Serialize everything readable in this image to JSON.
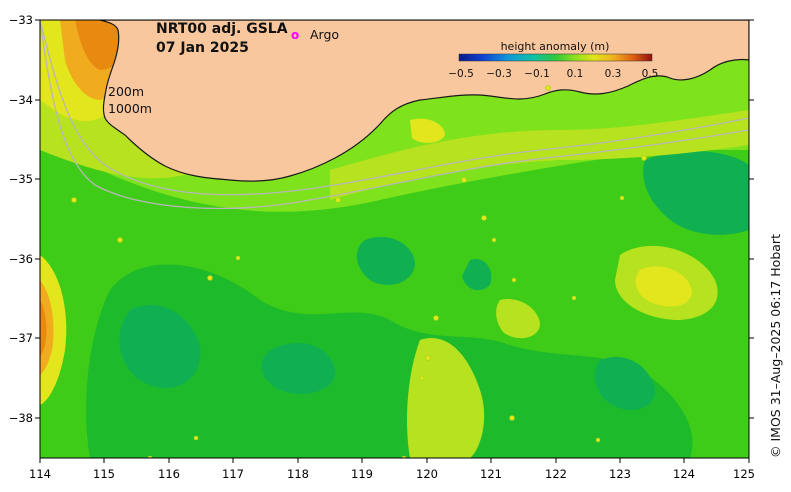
{
  "title": {
    "product": "NRT00 adj. GSLA",
    "date": "07 Jan 2025"
  },
  "legend": {
    "argo_marker": "o",
    "argo_label": "Argo"
  },
  "isobaths": [
    "200m",
    "1000m"
  ],
  "colorbar": {
    "title": "height anomaly (m)",
    "ticks": [
      "−0.5",
      "−0.3",
      "−0.1",
      "0.1",
      "0.3",
      "0.5"
    ],
    "min": -0.5,
    "max": 0.5
  },
  "axes": {
    "x_ticks": [
      "114",
      "115",
      "116",
      "117",
      "118",
      "119",
      "120",
      "121",
      "122",
      "123",
      "124",
      "125"
    ],
    "y_ticks": [
      "−33",
      "−34",
      "−35",
      "−36",
      "−37",
      "−38"
    ],
    "lon_range": [
      114,
      125
    ],
    "lat_range": [
      -38.5,
      -33
    ]
  },
  "credit": "© IMOS 31–Aug–2025 06:17 Hobart",
  "colors": {
    "land": "#f9c79e",
    "land_coast": "#1a1a1a",
    "isobath": "#b8b8b8",
    "argo": "#ff00ff",
    "sla_high": "#e88a10",
    "sla_mid_high": "#f0ac1e",
    "sla_yellow": "#e3e51d",
    "sla_yellow_green": "#b6e21f",
    "sla_light_green": "#7ee21c",
    "sla_green": "#3fcc18",
    "sla_mid_green": "#1dba2c",
    "sla_deep_green": "#10b052"
  }
}
